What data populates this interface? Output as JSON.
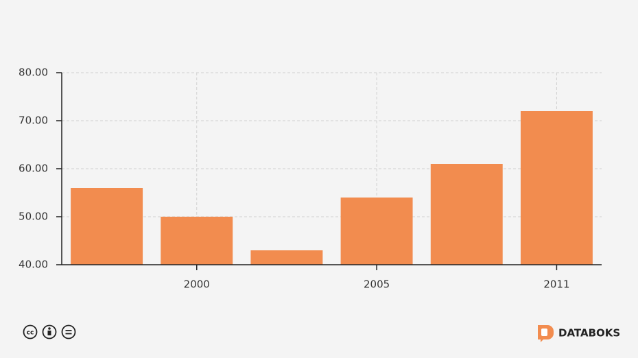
{
  "chart_data": {
    "type": "bar",
    "categories": [
      null,
      "2000",
      null,
      "2005",
      null,
      "2011"
    ],
    "values": [
      56,
      50,
      43,
      54,
      61,
      72
    ],
    "color": "#f28c4f",
    "ylim": [
      40,
      80
    ],
    "yticks": [
      {
        "value": 40,
        "label": "40.00"
      },
      {
        "value": 50,
        "label": "50.00"
      },
      {
        "value": 60,
        "label": "60.00"
      },
      {
        "value": 70,
        "label": "70.00"
      },
      {
        "value": 80,
        "label": "80.00"
      }
    ],
    "grid": true
  },
  "brand": "DATABOKS"
}
